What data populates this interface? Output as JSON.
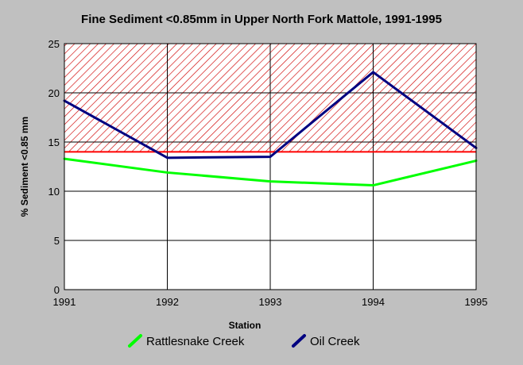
{
  "chart_data": {
    "type": "line",
    "title": "Fine Sediment <0.85mm in Upper North Fork Mattole, 1991-1995",
    "xlabel": "Station",
    "ylabel": "% Sediment <0.85 mm",
    "x": [
      1991,
      1992,
      1993,
      1994,
      1995
    ],
    "xlim": [
      1991,
      1995
    ],
    "ylim": [
      0,
      25
    ],
    "yticks": [
      0,
      5,
      10,
      15,
      20,
      25
    ],
    "grid": true,
    "legend_position": "bottom",
    "threshold": {
      "value": 14,
      "color": "#ff0000",
      "hatched_above": true
    },
    "series": [
      {
        "name": "Rattlesnake Creek",
        "values": [
          13.3,
          11.9,
          11.0,
          10.6,
          13.1
        ],
        "color": "#00ff00"
      },
      {
        "name": "Oil Creek",
        "values": [
          19.2,
          13.4,
          13.5,
          22.1,
          14.4
        ],
        "color": "#000080"
      }
    ]
  }
}
